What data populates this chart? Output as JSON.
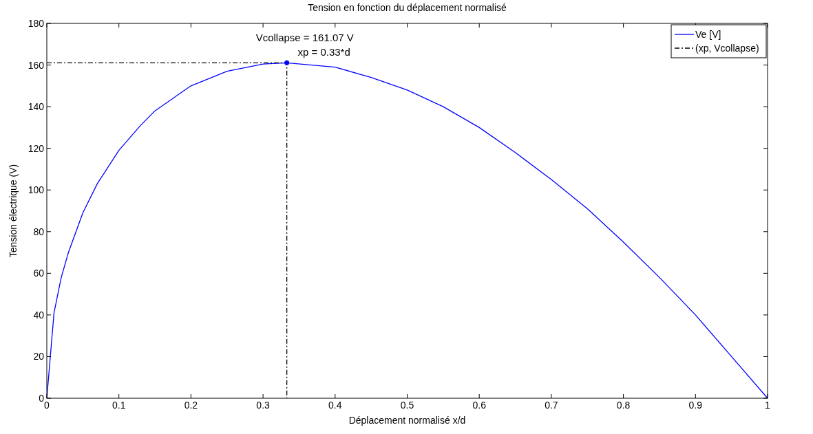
{
  "chart_data": {
    "type": "line",
    "title": "Tension en fonction du déplacement normalisé",
    "xlabel": "Déplacement normalisé x/d",
    "ylabel": "Tension électrique (V)",
    "xlim": [
      0,
      1
    ],
    "xticks": [
      0,
      0.1,
      0.2,
      0.3,
      0.4,
      0.5,
      0.6,
      0.7,
      0.8,
      0.9,
      1
    ],
    "ylim": [
      0,
      180
    ],
    "yticks": [
      0,
      20,
      40,
      60,
      80,
      100,
      120,
      140,
      160,
      180
    ],
    "grid": false,
    "legend": "top right",
    "series": [
      {
        "name": "Ve [V]",
        "color": "#0000ff",
        "line_style": "solid",
        "marker": "none",
        "x": [
          0,
          0.01,
          0.02,
          0.03,
          0.05,
          0.07,
          0.1,
          0.13,
          0.15,
          0.2,
          0.25,
          0.3,
          0.333,
          0.4,
          0.45,
          0.5,
          0.55,
          0.6,
          0.65,
          0.7,
          0.75,
          0.8,
          0.85,
          0.9,
          0.95,
          1
        ],
        "values": [
          0,
          41,
          58,
          70,
          89,
          103,
          119,
          131,
          138,
          150,
          157,
          160.5,
          161.07,
          159,
          154,
          148,
          140,
          130,
          118,
          105,
          91,
          75,
          58,
          40,
          20,
          0
        ]
      },
      {
        "name": "(xp, Vcollapse)",
        "color": "#000000",
        "line_style": "dashed",
        "marker": "none",
        "x": [
          0,
          0.333,
          0.333
        ],
        "values": [
          161.07,
          161.07,
          0
        ]
      },
      {
        "type": "scatter",
        "color": "#0000ff",
        "marker": "circle",
        "x": [
          0.333
        ],
        "values": [
          161.07
        ]
      }
    ],
    "annotations": [
      {
        "text": "Vcollapse = 161.07 V",
        "x": 0.333,
        "y": 161.07
      },
      {
        "text": "xp = 0.33*d",
        "x": 0.333,
        "y": 161.07
      }
    ]
  }
}
